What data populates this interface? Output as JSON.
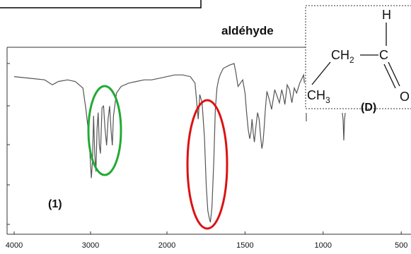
{
  "chart_data": {
    "type": "line",
    "title": "aldéhyde",
    "panel_label": "(1)",
    "xlabel": "",
    "ylabel": "",
    "x_reversed": true,
    "xlim": [
      4000,
      500
    ],
    "ylim": [
      0,
      100
    ],
    "x_ticks": [
      4000,
      3000,
      2000,
      1500,
      1000,
      500
    ],
    "x_tick_labels": [
      "4000",
      "3000",
      "2000",
      "1500",
      "1000",
      "500"
    ],
    "series": [
      {
        "x": [
          4000,
          3800,
          3600,
          3500,
          3420,
          3300,
          3200,
          3100,
          3060,
          3020,
          2990,
          2975,
          2960,
          2945,
          2930,
          2915,
          2900,
          2885,
          2870,
          2850,
          2830,
          2810,
          2790,
          2770,
          2750,
          2730,
          2715,
          2700,
          2660,
          2600,
          2500,
          2400,
          2300,
          2200,
          2100,
          2000,
          1950,
          1900,
          1850,
          1820,
          1800,
          1790,
          1775,
          1760,
          1748,
          1738,
          1730,
          1722,
          1712,
          1700,
          1690,
          1680,
          1670,
          1660,
          1640,
          1600,
          1570,
          1560,
          1545,
          1530,
          1515,
          1500,
          1490,
          1480,
          1470,
          1462,
          1455,
          1448,
          1440,
          1430,
          1420,
          1410,
          1400,
          1392,
          1385,
          1378,
          1370,
          1360,
          1345,
          1330,
          1310,
          1295,
          1280,
          1265,
          1255,
          1245,
          1230,
          1215,
          1200,
          1185,
          1170,
          1150,
          1135,
          1125,
          1120,
          1100,
          1000,
          950,
          880,
          870,
          865,
          860,
          850,
          840,
          800,
          700,
          600,
          500
        ],
        "y": [
          92,
          91,
          90,
          87,
          89,
          90,
          89,
          85,
          72,
          55,
          30,
          40,
          68,
          45,
          34,
          60,
          70,
          50,
          45,
          73,
          74,
          60,
          50,
          66,
          74,
          58,
          50,
          68,
          82,
          86,
          88,
          89,
          90,
          90,
          91,
          92,
          93,
          93,
          92,
          88,
          66,
          81,
          76,
          55,
          25,
          10,
          6,
          3,
          12,
          40,
          72,
          85,
          90,
          93,
          97,
          99,
          100,
          95,
          86,
          88,
          90,
          82,
          70,
          60,
          54,
          58,
          66,
          58,
          52,
          62,
          70,
          66,
          55,
          48,
          52,
          60,
          72,
          83,
          78,
          72,
          84,
          80,
          76,
          84,
          80,
          75,
          87,
          84,
          76,
          85,
          82,
          88,
          91,
          93,
          88,
          87,
          88,
          88,
          88,
          87,
          80,
          76,
          83,
          87,
          88,
          89,
          90,
          90
        ]
      }
    ],
    "annotations": [
      {
        "type": "ellipse",
        "color": "#22aa33",
        "label": ""
      },
      {
        "type": "ellipse",
        "color": "#dd1111",
        "label": ""
      }
    ]
  },
  "molecule": {
    "label": "(D)",
    "atom_H": "H",
    "group_ch2_main": "CH",
    "group_ch2_sub": "2",
    "atom_C": "C",
    "atom_O": "O",
    "group_ch3_main": "CH",
    "group_ch3_sub": "3"
  },
  "colors": {
    "spectrum": "#555555",
    "frame": "#333333",
    "green_ellipse": "#22aa33",
    "red_ellipse": "#dd1111"
  }
}
